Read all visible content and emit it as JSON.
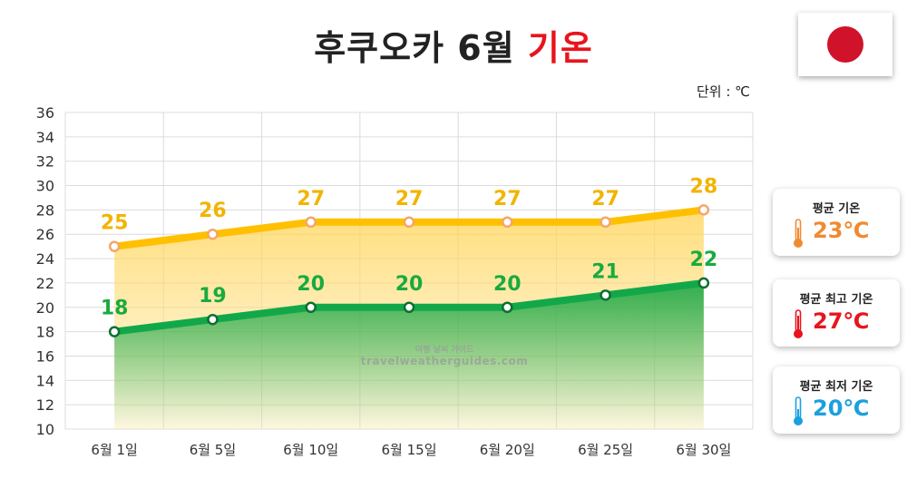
{
  "title": {
    "main": "후쿠오카 6월 ",
    "highlight": "기온"
  },
  "unit_label": "단위 : ℃",
  "watermark": {
    "line1": "여행 날씨 가이드",
    "line2": "travelweatherguides.com"
  },
  "colors": {
    "max_line": "#ffc000",
    "max_marker": "#f4a66a",
    "min_line": "#12a84a",
    "min_label": "#1aaa3f",
    "max_label": "#f2b400",
    "avg": "#f08a30",
    "hi": "#e8141c",
    "lo": "#1aa0df"
  },
  "cards": [
    {
      "label": "평균 기온",
      "value": "23℃",
      "color": "#f08a30",
      "icon": "thermometer-icon"
    },
    {
      "label": "평균 최고 기온",
      "value": "27℃",
      "color": "#e8141c",
      "icon": "thermometer-icon"
    },
    {
      "label": "평균 최저 기온",
      "value": "20℃",
      "color": "#1aa0df",
      "icon": "thermometer-icon"
    }
  ],
  "chart_data": {
    "type": "area",
    "categories": [
      "6월 1일",
      "6월 5일",
      "6월 10일",
      "6월 15일",
      "6월 20일",
      "6월 25일",
      "6월 30일"
    ],
    "series": [
      {
        "values": [
          25,
          26,
          27,
          27,
          27,
          27,
          28
        ]
      },
      {
        "values": [
          18,
          19,
          20,
          20,
          20,
          21,
          22
        ]
      }
    ],
    "ylim": [
      10,
      36
    ],
    "yticks": [
      10,
      12,
      14,
      16,
      18,
      20,
      22,
      24,
      26,
      28,
      30,
      32,
      34,
      36
    ],
    "grid": true
  }
}
